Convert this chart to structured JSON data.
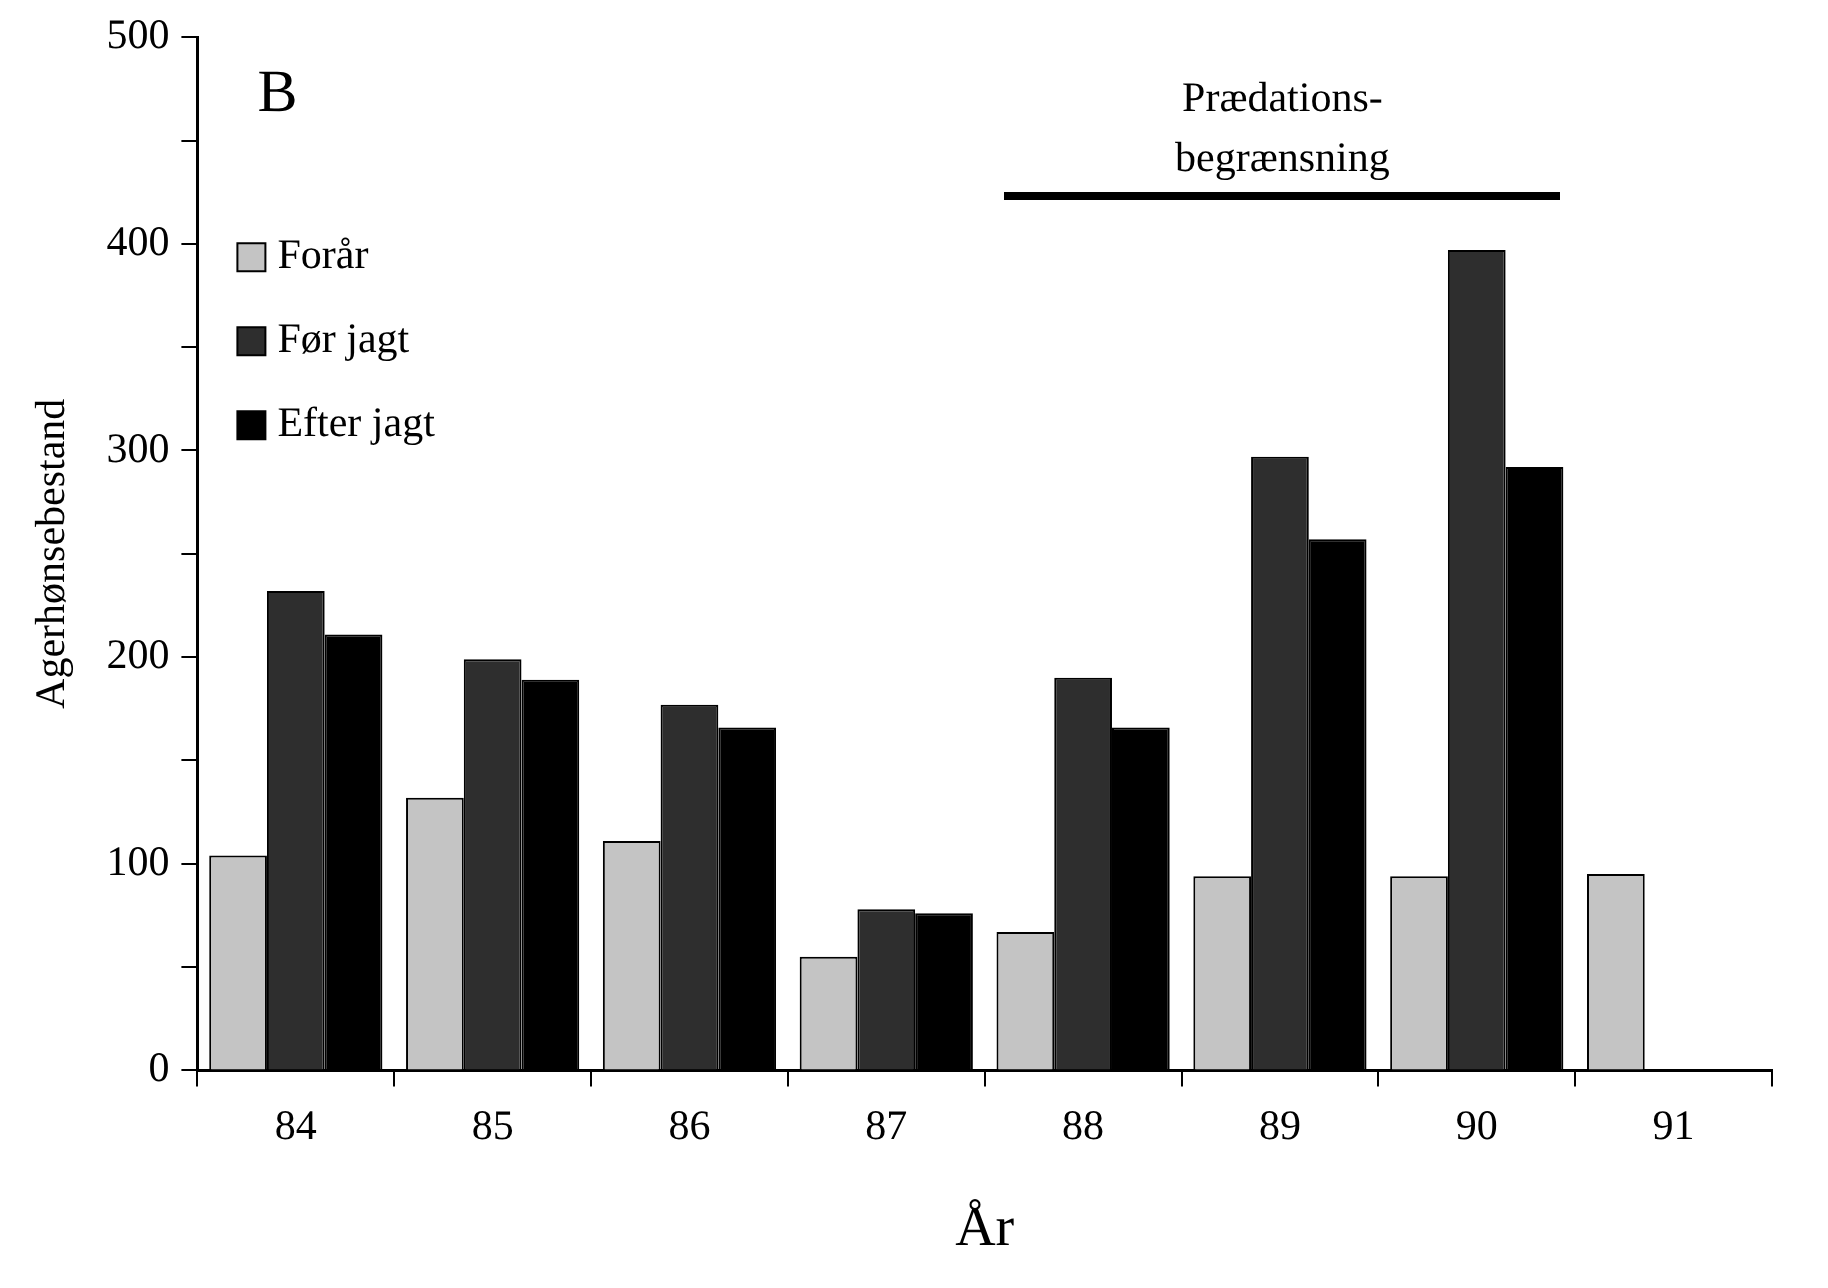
{
  "chart_data": {
    "type": "bar",
    "xlabel": "År",
    "ylabel": "Agerhønsebestand",
    "categories": [
      "84",
      "85",
      "86",
      "87",
      "88",
      "89",
      "90",
      "91"
    ],
    "series": [
      {
        "name": "Forår",
        "color": "#c4c4c4",
        "values": [
          104,
          132,
          111,
          55,
          67,
          94,
          94,
          95
        ]
      },
      {
        "name": "Før jagt",
        "color": "#2e2e2e",
        "values": [
          232,
          199,
          177,
          78,
          190,
          297,
          397,
          null
        ]
      },
      {
        "name": "Efter jagt",
        "color": "#000000",
        "values": [
          211,
          189,
          166,
          76,
          166,
          257,
          292,
          null
        ]
      }
    ],
    "ylim": [
      0,
      500
    ],
    "yticks": [
      0,
      {
        "value": 50,
        "label": null
      },
      100,
      {
        "value": 150,
        "label": null
      },
      200,
      {
        "value": 250,
        "label": null
      },
      300,
      {
        "value": 350,
        "label": null
      },
      400,
      {
        "value": 450,
        "label": null
      },
      500
    ],
    "annotations": [
      "B",
      "Prædations-\nbegrænsning"
    ],
    "legend": "top left",
    "grid": false
  }
}
